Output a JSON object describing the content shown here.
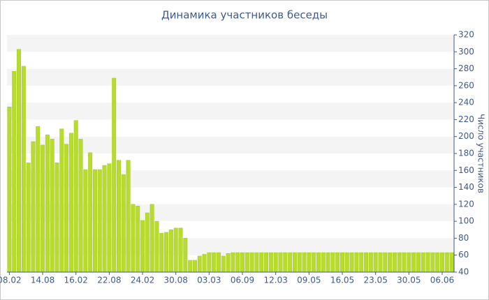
{
  "chart_data": {
    "type": "bar",
    "title": "Динамика участников беседы",
    "y_axis_label": "Число участников",
    "color": "#b8dc2e",
    "categories": [
      "08.02",
      null,
      null,
      null,
      null,
      null,
      null,
      "14.08",
      null,
      null,
      null,
      null,
      null,
      null,
      "16.02",
      null,
      null,
      null,
      null,
      null,
      null,
      "22.08",
      null,
      null,
      null,
      null,
      null,
      null,
      "24.02",
      null,
      null,
      null,
      null,
      null,
      null,
      "30.08",
      null,
      null,
      null,
      null,
      null,
      null,
      "03.03",
      null,
      null,
      null,
      null,
      null,
      null,
      "06.09",
      null,
      null,
      null,
      null,
      null,
      null,
      "12.03",
      null,
      null,
      null,
      null,
      null,
      null,
      "09.05",
      null,
      null,
      null,
      null,
      null,
      null,
      "16.05",
      null,
      null,
      null,
      null,
      null,
      null,
      "23.05",
      null,
      null,
      null,
      null,
      null,
      null,
      "30.05",
      null,
      null,
      null,
      null,
      null,
      null,
      "06.06",
      null,
      null
    ],
    "values": [
      235,
      277,
      303,
      283,
      169,
      194,
      212,
      190,
      202,
      197,
      169,
      209,
      191,
      204,
      219,
      197,
      161,
      181,
      161,
      161,
      166,
      168,
      269,
      172,
      155,
      172,
      120,
      118,
      101,
      110,
      120,
      100,
      86,
      87,
      90,
      92,
      92,
      80,
      54,
      54,
      59,
      61,
      63,
      63,
      63,
      59,
      62,
      63,
      63,
      63,
      63,
      63,
      63,
      63,
      63,
      63,
      63,
      63,
      63,
      63,
      63,
      63,
      63,
      63,
      63,
      63,
      63,
      63,
      63,
      63,
      63,
      63,
      63,
      63,
      63,
      63,
      63,
      63,
      63,
      63,
      63,
      63,
      63,
      63,
      63,
      63,
      63,
      63,
      63,
      63,
      63,
      63,
      63,
      63
    ],
    "ylim": [
      40,
      320
    ],
    "yticks": [
      40,
      60,
      80,
      100,
      120,
      140,
      160,
      180,
      200,
      220,
      240,
      260,
      280,
      300,
      320
    ],
    "grid": "bands"
  }
}
